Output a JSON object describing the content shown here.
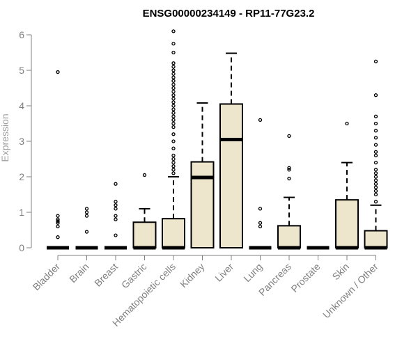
{
  "chart_data": {
    "type": "box",
    "title": "ENSG00000234149 - RP11-77G23.2",
    "xlabel": "",
    "ylabel": "Expression",
    "ylim": [
      -0.1,
      6.2
    ],
    "yticks": [
      0,
      1,
      2,
      3,
      4,
      5,
      6
    ],
    "box_fill": "#ede6cc",
    "axis_color": "#808080",
    "categories": [
      "Bladder",
      "Brain",
      "Breast",
      "Gastric",
      "Hematopoietic cells",
      "Kidney",
      "Liver",
      "Lung",
      "Pancreas",
      "Prostate",
      "Skin",
      "Unknown / Other"
    ],
    "boxes": [
      {
        "q1": 0,
        "median": 0,
        "q3": 0,
        "whisker_low": 0,
        "whisker_high": 0,
        "outliers": [
          0.3,
          0.6,
          0.7,
          0.75,
          0.8,
          0.9,
          4.95
        ]
      },
      {
        "q1": 0,
        "median": 0,
        "q3": 0,
        "whisker_low": 0,
        "whisker_high": 0,
        "outliers": [
          0.45,
          0.9,
          1.0,
          1.1
        ]
      },
      {
        "q1": 0,
        "median": 0,
        "q3": 0,
        "whisker_low": 0,
        "whisker_high": 0,
        "outliers": [
          0.35,
          0.8,
          0.9,
          1.1,
          1.2,
          1.3,
          1.8
        ]
      },
      {
        "q1": 0,
        "median": 0,
        "q3": 0.72,
        "whisker_low": 0,
        "whisker_high": 1.1,
        "outliers": [
          2.05
        ]
      },
      {
        "q1": 0,
        "median": 0,
        "q3": 0.82,
        "whisker_low": 0,
        "whisker_high": 2.0,
        "outliers": [
          2.1,
          2.2,
          2.3,
          2.4,
          2.5,
          2.6,
          2.8,
          3.0,
          3.2,
          3.4,
          3.5,
          3.6,
          3.7,
          3.8,
          3.9,
          4.0,
          4.1,
          4.2,
          4.3,
          4.4,
          4.5,
          4.6,
          4.7,
          4.8,
          4.9,
          5.0,
          5.1,
          5.2,
          5.5,
          5.75,
          6.1
        ]
      },
      {
        "q1": 0,
        "median": 1.98,
        "q3": 2.42,
        "whisker_low": 0,
        "whisker_high": 4.08,
        "outliers": []
      },
      {
        "q1": 0,
        "median": 3.05,
        "q3": 4.05,
        "whisker_low": 0,
        "whisker_high": 5.48,
        "outliers": []
      },
      {
        "q1": 0,
        "median": 0,
        "q3": 0,
        "whisker_low": 0,
        "whisker_high": 0,
        "outliers": [
          0.6,
          0.7,
          1.1,
          3.6
        ]
      },
      {
        "q1": 0,
        "median": 0,
        "q3": 0.62,
        "whisker_low": 0,
        "whisker_high": 1.42,
        "outliers": [
          1.95,
          2.2,
          2.25,
          3.15
        ]
      },
      {
        "q1": 0,
        "median": 0,
        "q3": 0,
        "whisker_low": 0,
        "whisker_high": 0,
        "outliers": []
      },
      {
        "q1": 0,
        "median": 0,
        "q3": 1.35,
        "whisker_low": 0,
        "whisker_high": 2.4,
        "outliers": [
          3.5
        ]
      },
      {
        "q1": 0,
        "median": 0,
        "q3": 0.48,
        "whisker_low": 0,
        "whisker_high": 1.2,
        "outliers": [
          1.3,
          1.5,
          1.6,
          1.7,
          1.8,
          1.9,
          2.0,
          2.1,
          2.2,
          2.4,
          2.6,
          2.7,
          2.9,
          3.1,
          3.3,
          3.5,
          3.7,
          4.3,
          5.25
        ]
      }
    ]
  }
}
